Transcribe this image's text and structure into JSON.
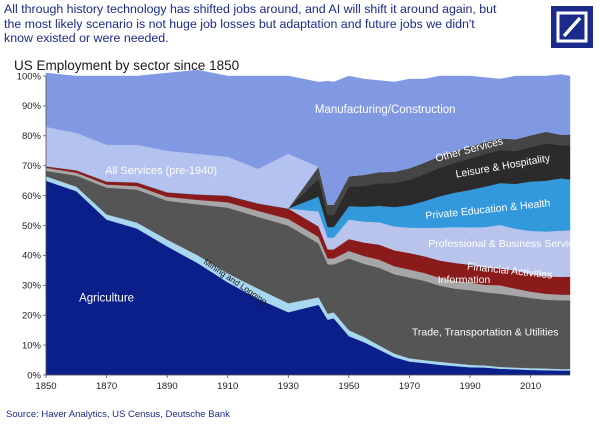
{
  "headline": "All through history technology has shifted jobs around, and AI will shift it around again, but the most likely scenario is not huge job losses but adaptation and future jobs we didn't know existed or were needed.",
  "logo": {
    "name": "Deutsche Bank logo",
    "color": "#1c2a8c"
  },
  "source": "Source: Haver Analytics, US Census, Deutsche Bank",
  "chart_data": {
    "type": "area",
    "stacked": true,
    "title": "US Employment by sector since 1850",
    "xlabel": "",
    "ylabel": "",
    "xlim": [
      1850,
      2023
    ],
    "ylim": [
      0,
      100
    ],
    "x_ticks": [
      1850,
      1870,
      1890,
      1910,
      1930,
      1950,
      1970,
      1990,
      2010
    ],
    "y_ticks": [
      "0%",
      "10%",
      "20%",
      "30%",
      "40%",
      "50%",
      "60%",
      "70%",
      "80%",
      "90%",
      "100%"
    ],
    "grid": false,
    "x": [
      1850,
      1860,
      1870,
      1880,
      1890,
      1900,
      1910,
      1920,
      1930,
      1940,
      1943,
      1945,
      1950,
      1955,
      1960,
      1965,
      1970,
      1975,
      1980,
      1985,
      1990,
      1995,
      2000,
      2005,
      2010,
      2015,
      2020,
      2023
    ],
    "series": [
      {
        "name": "Agriculture",
        "color": "#0b1f8a",
        "label": "Agriculture",
        "values": [
          65,
          61.5,
          52,
          49,
          43,
          37.5,
          31,
          25.5,
          21,
          23.5,
          18.5,
          19,
          13,
          11,
          8.5,
          6,
          4.5,
          4.0,
          3.4,
          3.0,
          2.6,
          2.5,
          2.1,
          1.9,
          1.7,
          1.6,
          1.5,
          1.5
        ]
      },
      {
        "name": "Mining and Logging",
        "color": "#a8d8f0",
        "label": "Mining and Logging",
        "values": [
          1.5,
          1.5,
          1.7,
          2.0,
          2.3,
          2.6,
          3.0,
          3.4,
          3.0,
          2.5,
          2.0,
          2.0,
          2.0,
          1.7,
          1.4,
          1.2,
          1.1,
          1.0,
          1.0,
          0.9,
          0.8,
          0.7,
          0.6,
          0.6,
          0.6,
          0.6,
          0.5,
          0.5
        ]
      },
      {
        "name": "Trade, Transportation & Utilities",
        "color": "#555555",
        "label": "Trade, Transportation & Utilities",
        "values": [
          1.8,
          3.7,
          9.0,
          11.0,
          13.0,
          17.0,
          22.0,
          24.0,
          26.0,
          18.0,
          16.5,
          16.0,
          24.0,
          24.5,
          26.0,
          26.5,
          27.0,
          26.5,
          25.5,
          25.0,
          25.0,
          24.5,
          24.5,
          24.0,
          23.5,
          23.0,
          23.0,
          23.0
        ]
      },
      {
        "name": "Information",
        "color": "#a6a6a6",
        "label": "Information",
        "values": [
          1.0,
          1.0,
          1.0,
          1.2,
          1.3,
          1.5,
          1.8,
          2.0,
          2.2,
          2.2,
          2.0,
          2.0,
          2.5,
          2.6,
          2.7,
          2.7,
          2.7,
          2.6,
          2.6,
          2.6,
          2.5,
          2.5,
          2.8,
          2.4,
          2.1,
          2.0,
          1.9,
          1.9
        ]
      },
      {
        "name": "Financial Activities",
        "color": "#8b1a1a",
        "label": "Financial Activities",
        "values": [
          0.5,
          0.8,
          1.0,
          1.2,
          1.5,
          1.8,
          2.2,
          2.5,
          3.5,
          3.5,
          3.0,
          3.0,
          4.0,
          4.5,
          5.0,
          5.3,
          5.5,
          5.6,
          5.8,
          6.0,
          6.0,
          5.8,
          5.7,
          6.0,
          5.8,
          5.8,
          5.9,
          6.0
        ]
      },
      {
        "name": "Professional & Business Services",
        "color": "#b8c4ec",
        "label": "Professional & Business Services",
        "values": [
          0,
          0,
          0,
          0,
          0,
          0,
          0,
          0,
          0,
          5.0,
          4.0,
          4.0,
          6.5,
          7.0,
          7.5,
          8.0,
          8.5,
          9.5,
          11.0,
          12.0,
          12.5,
          13.5,
          14.5,
          14.0,
          14.5,
          15.0,
          15.5,
          15.5
        ]
      },
      {
        "name": "Private Education & Health",
        "color": "#3399dd",
        "label": "Private Education & Health",
        "values": [
          0,
          0,
          0,
          0,
          0,
          0,
          0,
          0,
          0,
          5.0,
          3.5,
          3.5,
          4.5,
          5.0,
          5.5,
          6.5,
          7.5,
          9.0,
          10.5,
          11.5,
          12.5,
          13.5,
          14.0,
          15.0,
          16.5,
          17.0,
          17.5,
          17.0
        ]
      },
      {
        "name": "Leisure & Hospitality",
        "color": "#2b2b2b",
        "label": "Leisure & Hospitality",
        "values": [
          0,
          0,
          0,
          0,
          0,
          0,
          0,
          0,
          0,
          6.0,
          4.0,
          4.0,
          6.5,
          7.0,
          7.5,
          8.0,
          8.5,
          9.0,
          9.5,
          10.0,
          10.5,
          11.0,
          11.0,
          11.0,
          11.5,
          12.5,
          11.0,
          11.5
        ]
      },
      {
        "name": "Other Services",
        "color": "#454545",
        "label": "Other Services",
        "values": [
          0,
          0,
          0,
          0,
          0,
          0,
          0,
          0,
          0,
          4.0,
          3.5,
          3.5,
          3.5,
          3.7,
          3.8,
          3.8,
          3.9,
          3.9,
          3.9,
          4.0,
          4.0,
          4.0,
          4.0,
          4.0,
          4.0,
          3.9,
          3.6,
          3.6
        ]
      },
      {
        "name": "All Services (pre-1940)",
        "color": "#b3c2ee",
        "label": "All Services (pre-1940)",
        "values": [
          13.2,
          12.5,
          12.3,
          12.6,
          13.9,
          13.6,
          13.0,
          11.6,
          18.3,
          0,
          0,
          0,
          0,
          0,
          0,
          0,
          0,
          0,
          0,
          0,
          0,
          0,
          0,
          0,
          0,
          0,
          0,
          0
        ]
      },
      {
        "name": "Manufacturing/Construction",
        "color": "#8199e3",
        "label": "Manufacturing/Construction",
        "values": [
          18.0,
          19.0,
          23.0,
          23.0,
          26.0,
          28.0,
          27.0,
          31.0,
          26.0,
          28.3,
          41.3,
          41.0,
          33.5,
          32.0,
          30.6,
          30.0,
          29.8,
          27.9,
          26.8,
          25.0,
          23.6,
          21.5,
          19.8,
          21.1,
          19.8,
          18.6,
          20.1,
          19.5
        ]
      }
    ],
    "annotations": [
      {
        "text": "Mining and Logging",
        "series": "Mining and Logging"
      },
      {
        "text": "All Services (pre-1940)",
        "series": "All Services (pre-1940)"
      }
    ]
  }
}
